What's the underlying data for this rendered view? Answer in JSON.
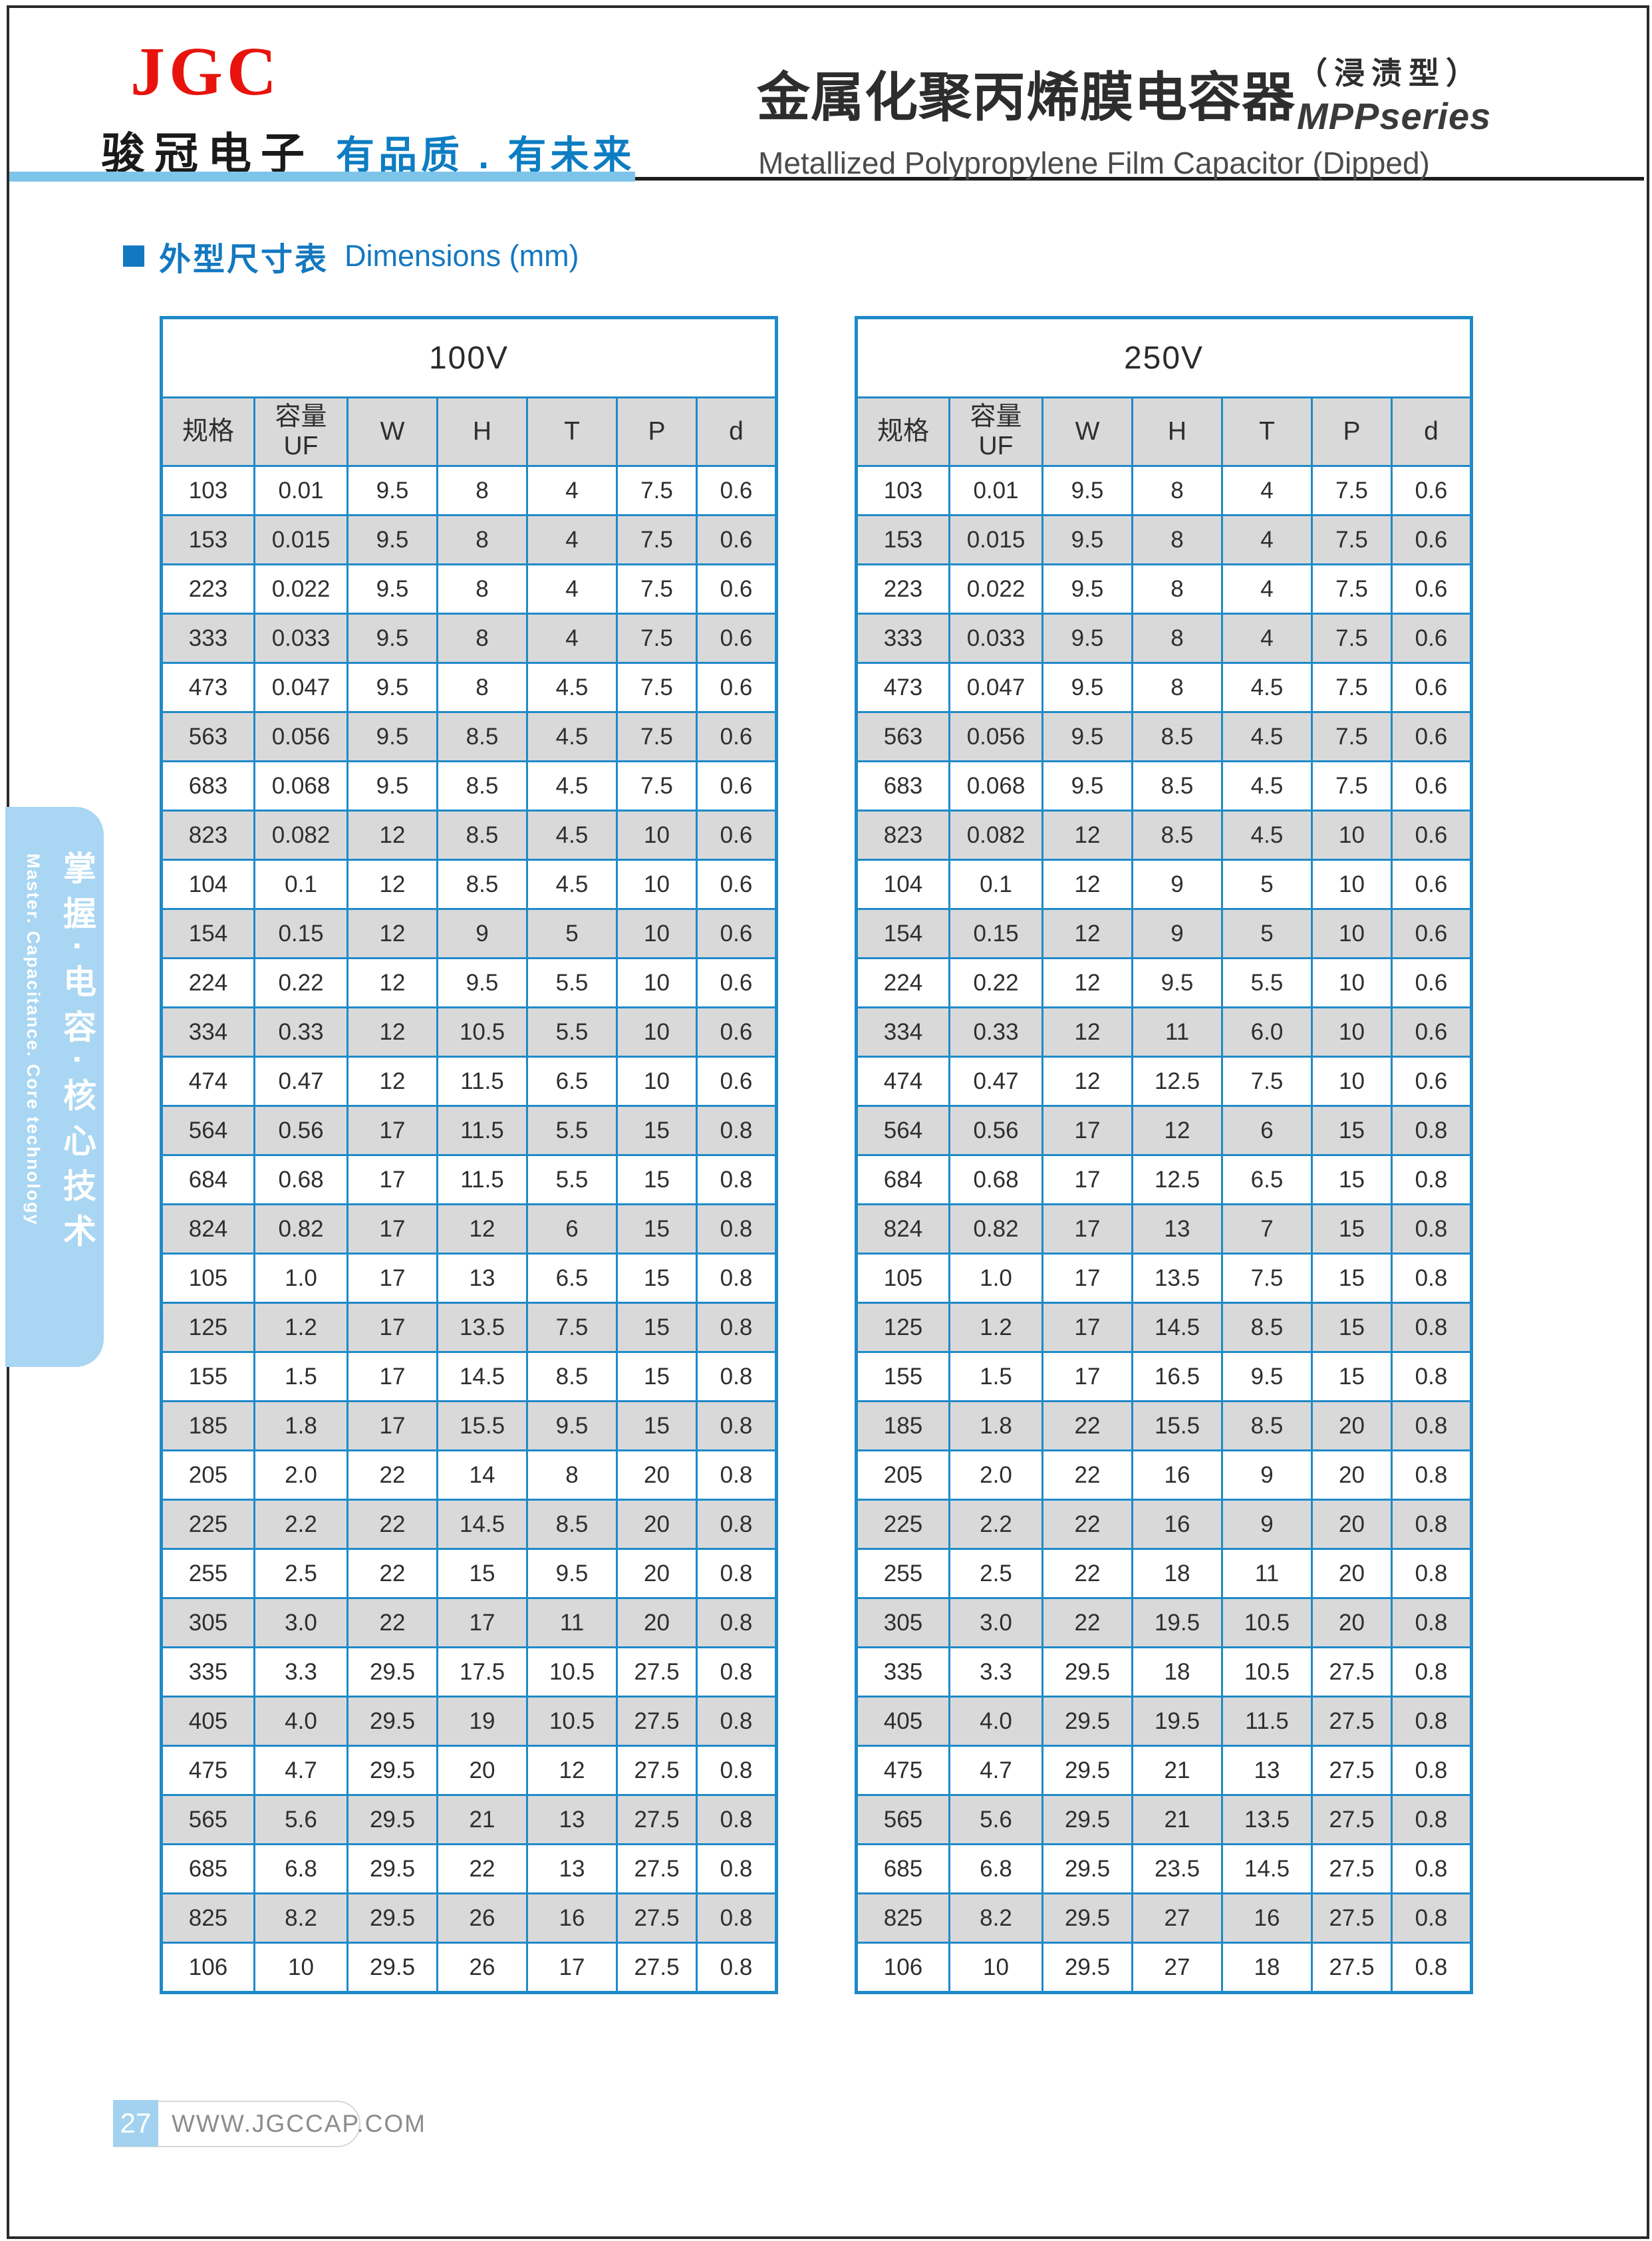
{
  "page": {
    "brand": {
      "logo": "JGC",
      "company": "骏冠电子",
      "slogan": "有品质 . 有未来"
    },
    "title": {
      "cn": "金属化聚丙烯膜电容器",
      "paren": "（浸渍型）",
      "series": "MPPseries",
      "en": "Metallized Polypropylene Film Capacitor (Dipped)"
    },
    "section": {
      "cn": "外型尺寸表",
      "en": "Dimensions (mm)"
    },
    "sidebar": {
      "cn": "掌握·电容·核心技术",
      "en": "Master. Capacitance. Core technology"
    },
    "footer": {
      "page_no": "27",
      "url": "WWW.JGCCAP.COM"
    }
  },
  "tables": [
    {
      "voltage": "100V",
      "columns": [
        "规格",
        "容量\nUF",
        "W",
        "H",
        "T",
        "P",
        "d"
      ],
      "rows": [
        [
          "103",
          "0.01",
          "9.5",
          "8",
          "4",
          "7.5",
          "0.6"
        ],
        [
          "153",
          "0.015",
          "9.5",
          "8",
          "4",
          "7.5",
          "0.6"
        ],
        [
          "223",
          "0.022",
          "9.5",
          "8",
          "4",
          "7.5",
          "0.6"
        ],
        [
          "333",
          "0.033",
          "9.5",
          "8",
          "4",
          "7.5",
          "0.6"
        ],
        [
          "473",
          "0.047",
          "9.5",
          "8",
          "4.5",
          "7.5",
          "0.6"
        ],
        [
          "563",
          "0.056",
          "9.5",
          "8.5",
          "4.5",
          "7.5",
          "0.6"
        ],
        [
          "683",
          "0.068",
          "9.5",
          "8.5",
          "4.5",
          "7.5",
          "0.6"
        ],
        [
          "823",
          "0.082",
          "12",
          "8.5",
          "4.5",
          "10",
          "0.6"
        ],
        [
          "104",
          "0.1",
          "12",
          "8.5",
          "4.5",
          "10",
          "0.6"
        ],
        [
          "154",
          "0.15",
          "12",
          "9",
          "5",
          "10",
          "0.6"
        ],
        [
          "224",
          "0.22",
          "12",
          "9.5",
          "5.5",
          "10",
          "0.6"
        ],
        [
          "334",
          "0.33",
          "12",
          "10.5",
          "5.5",
          "10",
          "0.6"
        ],
        [
          "474",
          "0.47",
          "12",
          "11.5",
          "6.5",
          "10",
          "0.6"
        ],
        [
          "564",
          "0.56",
          "17",
          "11.5",
          "5.5",
          "15",
          "0.8"
        ],
        [
          "684",
          "0.68",
          "17",
          "11.5",
          "5.5",
          "15",
          "0.8"
        ],
        [
          "824",
          "0.82",
          "17",
          "12",
          "6",
          "15",
          "0.8"
        ],
        [
          "105",
          "1.0",
          "17",
          "13",
          "6.5",
          "15",
          "0.8"
        ],
        [
          "125",
          "1.2",
          "17",
          "13.5",
          "7.5",
          "15",
          "0.8"
        ],
        [
          "155",
          "1.5",
          "17",
          "14.5",
          "8.5",
          "15",
          "0.8"
        ],
        [
          "185",
          "1.8",
          "17",
          "15.5",
          "9.5",
          "15",
          "0.8"
        ],
        [
          "205",
          "2.0",
          "22",
          "14",
          "8",
          "20",
          "0.8"
        ],
        [
          "225",
          "2.2",
          "22",
          "14.5",
          "8.5",
          "20",
          "0.8"
        ],
        [
          "255",
          "2.5",
          "22",
          "15",
          "9.5",
          "20",
          "0.8"
        ],
        [
          "305",
          "3.0",
          "22",
          "17",
          "11",
          "20",
          "0.8"
        ],
        [
          "335",
          "3.3",
          "29.5",
          "17.5",
          "10.5",
          "27.5",
          "0.8"
        ],
        [
          "405",
          "4.0",
          "29.5",
          "19",
          "10.5",
          "27.5",
          "0.8"
        ],
        [
          "475",
          "4.7",
          "29.5",
          "20",
          "12",
          "27.5",
          "0.8"
        ],
        [
          "565",
          "5.6",
          "29.5",
          "21",
          "13",
          "27.5",
          "0.8"
        ],
        [
          "685",
          "6.8",
          "29.5",
          "22",
          "13",
          "27.5",
          "0.8"
        ],
        [
          "825",
          "8.2",
          "29.5",
          "26",
          "16",
          "27.5",
          "0.8"
        ],
        [
          "106",
          "10",
          "29.5",
          "26",
          "17",
          "27.5",
          "0.8"
        ]
      ]
    },
    {
      "voltage": "250V",
      "columns": [
        "规格",
        "容量\nUF",
        "W",
        "H",
        "T",
        "P",
        "d"
      ],
      "rows": [
        [
          "103",
          "0.01",
          "9.5",
          "8",
          "4",
          "7.5",
          "0.6"
        ],
        [
          "153",
          "0.015",
          "9.5",
          "8",
          "4",
          "7.5",
          "0.6"
        ],
        [
          "223",
          "0.022",
          "9.5",
          "8",
          "4",
          "7.5",
          "0.6"
        ],
        [
          "333",
          "0.033",
          "9.5",
          "8",
          "4",
          "7.5",
          "0.6"
        ],
        [
          "473",
          "0.047",
          "9.5",
          "8",
          "4.5",
          "7.5",
          "0.6"
        ],
        [
          "563",
          "0.056",
          "9.5",
          "8.5",
          "4.5",
          "7.5",
          "0.6"
        ],
        [
          "683",
          "0.068",
          "9.5",
          "8.5",
          "4.5",
          "7.5",
          "0.6"
        ],
        [
          "823",
          "0.082",
          "12",
          "8.5",
          "4.5",
          "10",
          "0.6"
        ],
        [
          "104",
          "0.1",
          "12",
          "9",
          "5",
          "10",
          "0.6"
        ],
        [
          "154",
          "0.15",
          "12",
          "9",
          "5",
          "10",
          "0.6"
        ],
        [
          "224",
          "0.22",
          "12",
          "9.5",
          "5.5",
          "10",
          "0.6"
        ],
        [
          "334",
          "0.33",
          "12",
          "11",
          "6.0",
          "10",
          "0.6"
        ],
        [
          "474",
          "0.47",
          "12",
          "12.5",
          "7.5",
          "10",
          "0.6"
        ],
        [
          "564",
          "0.56",
          "17",
          "12",
          "6",
          "15",
          "0.8"
        ],
        [
          "684",
          "0.68",
          "17",
          "12.5",
          "6.5",
          "15",
          "0.8"
        ],
        [
          "824",
          "0.82",
          "17",
          "13",
          "7",
          "15",
          "0.8"
        ],
        [
          "105",
          "1.0",
          "17",
          "13.5",
          "7.5",
          "15",
          "0.8"
        ],
        [
          "125",
          "1.2",
          "17",
          "14.5",
          "8.5",
          "15",
          "0.8"
        ],
        [
          "155",
          "1.5",
          "17",
          "16.5",
          "9.5",
          "15",
          "0.8"
        ],
        [
          "185",
          "1.8",
          "22",
          "15.5",
          "8.5",
          "20",
          "0.8"
        ],
        [
          "205",
          "2.0",
          "22",
          "16",
          "9",
          "20",
          "0.8"
        ],
        [
          "225",
          "2.2",
          "22",
          "16",
          "9",
          "20",
          "0.8"
        ],
        [
          "255",
          "2.5",
          "22",
          "18",
          "11",
          "20",
          "0.8"
        ],
        [
          "305",
          "3.0",
          "22",
          "19.5",
          "10.5",
          "20",
          "0.8"
        ],
        [
          "335",
          "3.3",
          "29.5",
          "18",
          "10.5",
          "27.5",
          "0.8"
        ],
        [
          "405",
          "4.0",
          "29.5",
          "19.5",
          "11.5",
          "27.5",
          "0.8"
        ],
        [
          "475",
          "4.7",
          "29.5",
          "21",
          "13",
          "27.5",
          "0.8"
        ],
        [
          "565",
          "5.6",
          "29.5",
          "21",
          "13.5",
          "27.5",
          "0.8"
        ],
        [
          "685",
          "6.8",
          "29.5",
          "23.5",
          "14.5",
          "27.5",
          "0.8"
        ],
        [
          "825",
          "8.2",
          "29.5",
          "27",
          "16",
          "27.5",
          "0.8"
        ],
        [
          "106",
          "10",
          "29.5",
          "27",
          "18",
          "27.5",
          "0.8"
        ]
      ]
    }
  ],
  "colors": {
    "table_border": "#1f8ac8",
    "row_alt": "#d9d9d9",
    "accent_blue": "#1478c0",
    "header_bar_blue": "#7ec4ea",
    "sidebar_bg": "#a9d6f2",
    "logo_red": "#e8130c",
    "footer_badge_blue": "#a2d2ef"
  }
}
